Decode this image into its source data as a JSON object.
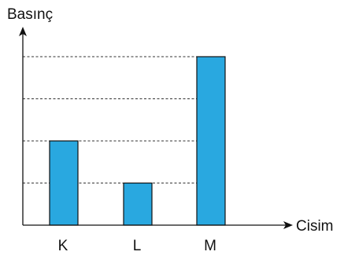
{
  "chart_data": {
    "type": "bar",
    "title": "",
    "xlabel": "Cisim",
    "ylabel": "Basınç",
    "categories": [
      "K",
      "L",
      "M"
    ],
    "values": [
      2,
      1,
      4
    ],
    "ylim": [
      0,
      4
    ],
    "y_ticks_labeled": false,
    "grid": "horizontal dashed",
    "bar_color": "#29A8E0",
    "bar_edge_color": "#111111",
    "axis_color": "#111111",
    "grid_color": "#333333"
  }
}
